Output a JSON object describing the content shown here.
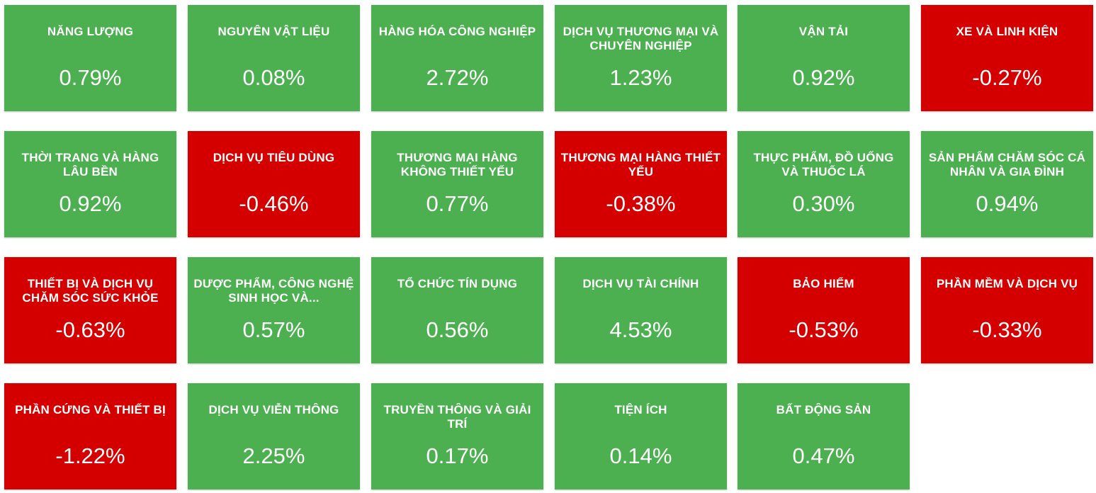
{
  "colors": {
    "positive": "#4caf50",
    "negative": "#d40000",
    "text": "#ffffff"
  },
  "tiles": [
    {
      "name": "NĂNG LƯỢNG",
      "value": "0.79%",
      "trend": "up"
    },
    {
      "name": "NGUYÊN VẬT LIỆU",
      "value": "0.08%",
      "trend": "up"
    },
    {
      "name": "HÀNG HÓA CÔNG NGHIỆP",
      "value": "2.72%",
      "trend": "up"
    },
    {
      "name": "DỊCH VỤ THƯƠNG MẠI VÀ CHUYÊN NGHIỆP",
      "value": "1.23%",
      "trend": "up"
    },
    {
      "name": "VẬN TẢI",
      "value": "0.92%",
      "trend": "up"
    },
    {
      "name": "XE VÀ LINH KIỆN",
      "value": "-0.27%",
      "trend": "down"
    },
    {
      "name": "THỜI TRANG VÀ HÀNG LÂU BỀN",
      "value": "0.92%",
      "trend": "up"
    },
    {
      "name": "DỊCH VỤ TIÊU DÙNG",
      "value": "-0.46%",
      "trend": "down"
    },
    {
      "name": "THƯƠNG MẠI HÀNG KHÔNG THIẾT YẾU",
      "value": "0.77%",
      "trend": "up"
    },
    {
      "name": "THƯƠNG MẠI HÀNG THIẾT YẾU",
      "value": "-0.38%",
      "trend": "down"
    },
    {
      "name": "THỰC PHẨM, ĐỒ UỐNG VÀ THUỐC LÁ",
      "value": "0.30%",
      "trend": "up"
    },
    {
      "name": "SẢN PHẨM CHĂM SÓC CÁ NHÂN VÀ GIA ĐÌNH",
      "value": "0.94%",
      "trend": "up"
    },
    {
      "name": "THIẾT BỊ VÀ DỊCH VỤ CHĂM SÓC SỨC KHỎE",
      "value": "-0.63%",
      "trend": "down"
    },
    {
      "name": "DƯỢC PHẨM, CÔNG NGHỆ SINH HỌC VÀ...",
      "value": "0.57%",
      "trend": "up"
    },
    {
      "name": "TỔ CHỨC TÍN DỤNG",
      "value": "0.56%",
      "trend": "up"
    },
    {
      "name": "DỊCH VỤ TÀI CHÍNH",
      "value": "4.53%",
      "trend": "up"
    },
    {
      "name": "BẢO HIỂM",
      "value": "-0.53%",
      "trend": "down"
    },
    {
      "name": "PHẦN MỀM VÀ DỊCH VỤ",
      "value": "-0.33%",
      "trend": "down"
    },
    {
      "name": "PHẦN CỨNG VÀ THIẾT BỊ",
      "value": "-1.22%",
      "trend": "down"
    },
    {
      "name": "DỊCH VỤ VIỄN THÔNG",
      "value": "2.25%",
      "trend": "up"
    },
    {
      "name": "TRUYỀN THÔNG VÀ GIẢI TRÍ",
      "value": "0.17%",
      "trend": "up"
    },
    {
      "name": "TIỆN ÍCH",
      "value": "0.14%",
      "trend": "up"
    },
    {
      "name": "BẤT ĐỘNG SẢN",
      "value": "0.47%",
      "trend": "up"
    }
  ]
}
